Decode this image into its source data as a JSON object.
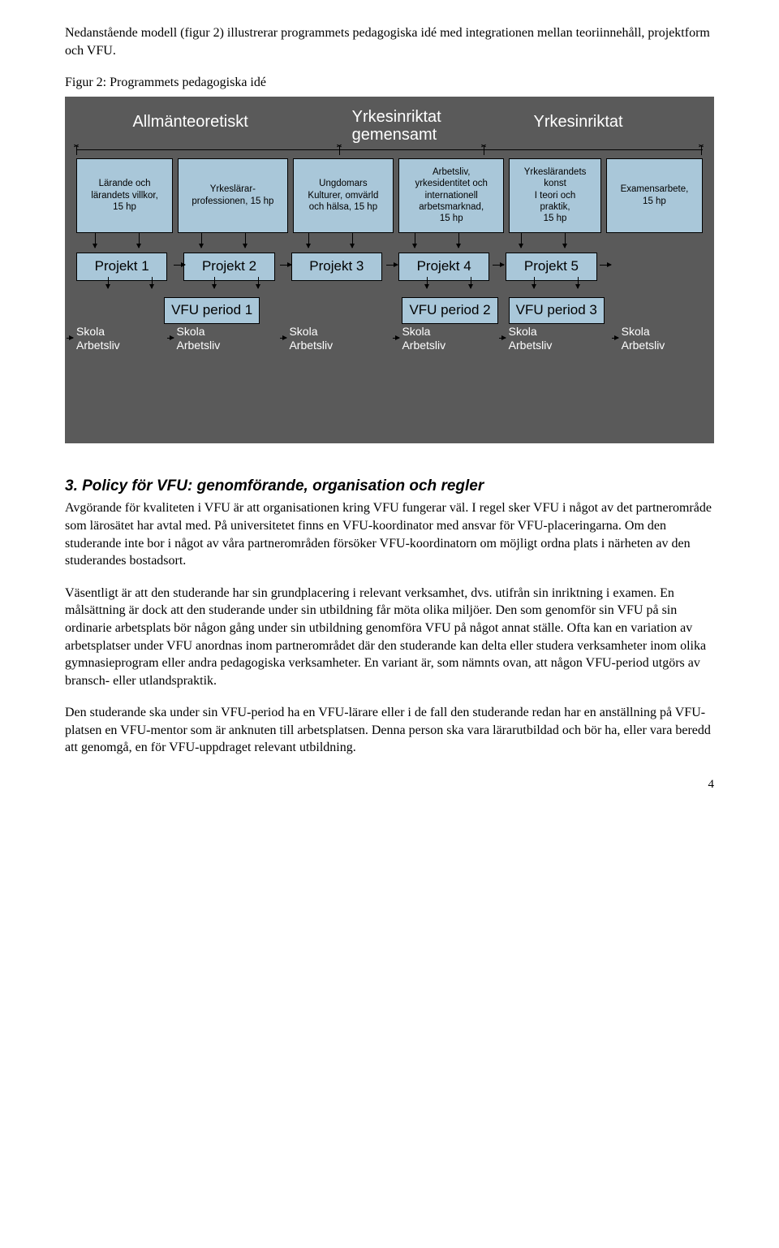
{
  "intro_para": "Nedanstående modell (figur 2) illustrerar programmets pedagogiska idé med integrationen mellan teoriinnehåll, projektform och VFU.",
  "fig_caption": "Figur 2: Programmets pedagogiska idé",
  "diagram": {
    "axis_labels": [
      "Allmänteoretiskt",
      "Yrkesinriktat gemensamt",
      "Yrkesinriktat"
    ],
    "axis_colors": {
      "background": "#5a5a5a",
      "box_fill": "#a9c7d9",
      "line": "#000000",
      "label_text": "#ffffff"
    },
    "courses": [
      {
        "lines": [
          "Lärande och",
          "lärandets villkor,",
          "15 hp"
        ],
        "flex": 1.0
      },
      {
        "lines": [
          "Yrkeslärar-",
          "professionen, 15 hp"
        ],
        "flex": 1.15
      },
      {
        "lines": [
          "Ungdomars",
          "Kulturer, omvärld",
          "och hälsa, 15 hp"
        ],
        "flex": 1.05
      },
      {
        "lines": [
          "Arbetsliv,",
          "yrkesidentitet och",
          "internationell",
          "arbetsmarknad,",
          "15 hp"
        ],
        "flex": 1.1
      },
      {
        "lines": [
          "Yrkeslärandets",
          "konst",
          "I teori och",
          "praktik,",
          "15 hp"
        ],
        "flex": 0.95
      },
      {
        "lines": [
          "Examensarbete,",
          "15 hp"
        ],
        "flex": 1.0
      }
    ],
    "projects": [
      "Projekt 1",
      "Projekt 2",
      "Projekt 3",
      "Projekt 4",
      "Projekt 5"
    ],
    "vfu_periods": [
      {
        "label": "VFU period 1",
        "left_pct": 14
      },
      {
        "label": "VFU period 2",
        "left_pct": 52
      },
      {
        "label": "VFU period 3",
        "left_pct": 69
      }
    ],
    "skola_cols_left_pct": [
      0,
      16,
      34,
      52,
      69,
      87
    ],
    "skola_line1": "Skola",
    "skola_line2": "Arbetsliv"
  },
  "section_heading": "3. Policy för VFU: genomförande, organisation och regler",
  "para1": "Avgörande för kvaliteten i VFU är att organisationen kring VFU fungerar väl. I regel sker VFU i något av det partnerområde som lärosätet har avtal med. På universitetet finns en VFU-koordinator med ansvar för VFU-placeringarna. Om den studerande inte bor i något av våra partnerområden försöker VFU-koordinatorn om möjligt ordna plats i närheten av den studerandes bostadsort.",
  "para2": "Väsentligt är att den studerande har sin grundplacering i relevant verksamhet, dvs. utifrån sin inriktning i examen. En målsättning är dock att den studerande under sin utbildning får möta olika miljöer. Den som genomför sin VFU på sin ordinarie arbetsplats bör någon gång under sin utbildning genomföra VFU på något annat ställe. Ofta kan en variation av arbetsplatser under VFU anordnas inom partnerområdet där den studerande kan delta eller studera verksamheter inom olika gymnasieprogram eller andra pedagogiska verksamheter. En variant är, som nämnts ovan, att någon VFU-period utgörs av bransch- eller utlandspraktik.",
  "para3": "Den studerande ska under sin VFU-period ha en VFU-lärare eller i de fall den studerande redan har en anställning på VFU-platsen en VFU-mentor som är anknuten till arbetsplatsen. Denna person ska vara lärarutbildad och bör ha, eller vara beredd att genomgå, en för VFU-uppdraget relevant utbildning.",
  "page_number": "4"
}
